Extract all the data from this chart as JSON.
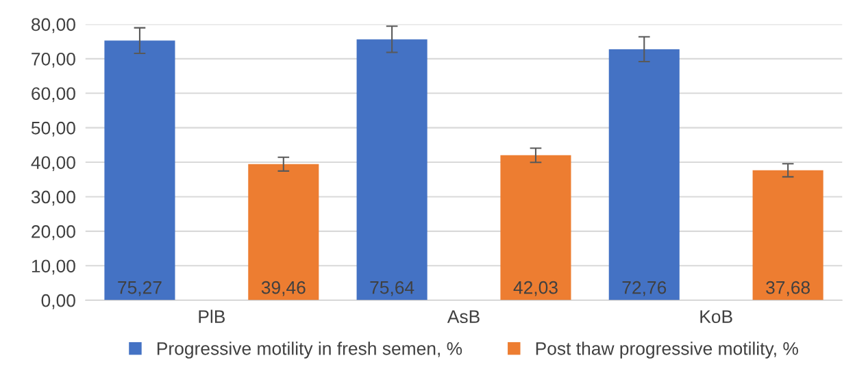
{
  "chart_data": {
    "type": "bar",
    "categories": [
      "PlB",
      "AsB",
      "KoB"
    ],
    "series": [
      {
        "name": "Progressive motility in fresh semen, %",
        "color": "#4472c4",
        "values": [
          75.27,
          75.64,
          72.76
        ],
        "errors": [
          3.7,
          3.8,
          3.6
        ],
        "value_labels": [
          "75,27",
          "75,64",
          "72,76"
        ]
      },
      {
        "name": "Post thaw progressive motility, %",
        "color": "#ed7d31",
        "values": [
          39.46,
          42.03,
          37.68
        ],
        "errors": [
          2.0,
          2.05,
          1.9
        ],
        "value_labels": [
          "39,46",
          "42,03",
          "37,68"
        ]
      }
    ],
    "ylim": [
      0,
      80
    ],
    "yticks": [
      {
        "value": 0,
        "label": "0,00"
      },
      {
        "value": 10,
        "label": "10,00"
      },
      {
        "value": 20,
        "label": "20,00"
      },
      {
        "value": 30,
        "label": "30,00"
      },
      {
        "value": 40,
        "label": "40,00"
      },
      {
        "value": 50,
        "label": "50,00"
      },
      {
        "value": 60,
        "label": "60,00"
      },
      {
        "value": 70,
        "label": "70,00"
      },
      {
        "value": 80,
        "label": "80,00"
      }
    ],
    "grid": "y",
    "legend": "bottom"
  }
}
